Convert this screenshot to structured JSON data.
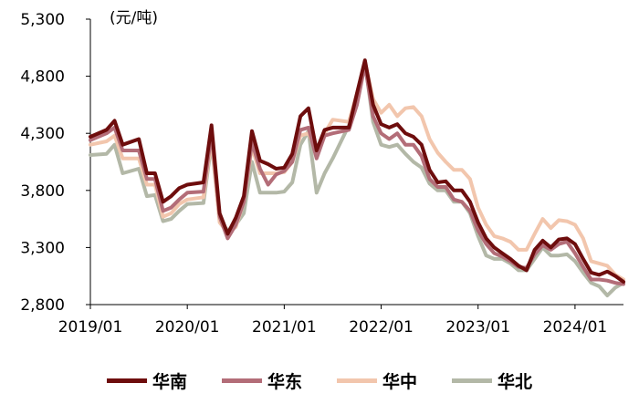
{
  "chart_data": {
    "type": "line",
    "unit_label": "(元/吨)",
    "ylim": [
      2800,
      5300
    ],
    "yticks": [
      2800,
      3300,
      3800,
      4300,
      4800,
      5300
    ],
    "ytick_labels": [
      "2,800",
      "3,300",
      "3,800",
      "4,300",
      "4,800",
      "5,300"
    ],
    "xticks": [
      "2019-01",
      "2020-01",
      "2021-01",
      "2022-01",
      "2023-01",
      "2024-01"
    ],
    "xtick_labels": [
      "2019/01",
      "2020/01",
      "2021/01",
      "2022/01",
      "2023/01",
      "2024/01"
    ],
    "xlim": [
      "2019-01",
      "2024-07"
    ],
    "grid": false,
    "legend_position": "bottom",
    "series": [
      {
        "name": "华南",
        "color": "#6e0d0d",
        "points": [
          [
            "2019-01",
            4270
          ],
          [
            "2019-03",
            4330
          ],
          [
            "2019-04",
            4410
          ],
          [
            "2019-05",
            4200
          ],
          [
            "2019-07",
            4250
          ],
          [
            "2019-08",
            3950
          ],
          [
            "2019-09",
            3950
          ],
          [
            "2019-10",
            3700
          ],
          [
            "2019-11",
            3750
          ],
          [
            "2019-12",
            3820
          ],
          [
            "2020-01",
            3850
          ],
          [
            "2020-03",
            3870
          ],
          [
            "2020-04",
            4370
          ],
          [
            "2020-05",
            3600
          ],
          [
            "2020-06",
            3420
          ],
          [
            "2020-07",
            3560
          ],
          [
            "2020-08",
            3750
          ],
          [
            "2020-09",
            4320
          ],
          [
            "2020-10",
            4060
          ],
          [
            "2020-11",
            4030
          ],
          [
            "2020-12",
            3990
          ],
          [
            "2021-01",
            4000
          ],
          [
            "2021-02",
            4120
          ],
          [
            "2021-03",
            4450
          ],
          [
            "2021-04",
            4520
          ],
          [
            "2021-05",
            4150
          ],
          [
            "2021-06",
            4330
          ],
          [
            "2021-07",
            4350
          ],
          [
            "2021-09",
            4350
          ],
          [
            "2021-10",
            4650
          ],
          [
            "2021-11",
            4940
          ],
          [
            "2021-12",
            4550
          ],
          [
            "2022-01",
            4380
          ],
          [
            "2022-02",
            4350
          ],
          [
            "2022-03",
            4380
          ],
          [
            "2022-04",
            4300
          ],
          [
            "2022-05",
            4270
          ],
          [
            "2022-06",
            4200
          ],
          [
            "2022-07",
            3980
          ],
          [
            "2022-08",
            3870
          ],
          [
            "2022-09",
            3880
          ],
          [
            "2022-10",
            3800
          ],
          [
            "2022-11",
            3800
          ],
          [
            "2022-12",
            3700
          ],
          [
            "2023-01",
            3520
          ],
          [
            "2023-02",
            3380
          ],
          [
            "2023-03",
            3300
          ],
          [
            "2023-04",
            3250
          ],
          [
            "2023-05",
            3200
          ],
          [
            "2023-06",
            3140
          ],
          [
            "2023-07",
            3100
          ],
          [
            "2023-08",
            3280
          ],
          [
            "2023-09",
            3360
          ],
          [
            "2023-10",
            3300
          ],
          [
            "2023-11",
            3370
          ],
          [
            "2023-12",
            3380
          ],
          [
            "2024-01",
            3330
          ],
          [
            "2024-02",
            3200
          ],
          [
            "2024-03",
            3080
          ],
          [
            "2024-04",
            3060
          ],
          [
            "2024-05",
            3090
          ],
          [
            "2024-06",
            3050
          ],
          [
            "2024-07",
            3000
          ]
        ]
      },
      {
        "name": "华东",
        "color": "#b36d78",
        "points": [
          [
            "2019-01",
            4240
          ],
          [
            "2019-03",
            4300
          ],
          [
            "2019-04",
            4350
          ],
          [
            "2019-05",
            4150
          ],
          [
            "2019-07",
            4150
          ],
          [
            "2019-08",
            3900
          ],
          [
            "2019-09",
            3900
          ],
          [
            "2019-10",
            3620
          ],
          [
            "2019-11",
            3650
          ],
          [
            "2019-12",
            3720
          ],
          [
            "2020-01",
            3780
          ],
          [
            "2020-03",
            3790
          ],
          [
            "2020-04",
            4300
          ],
          [
            "2020-05",
            3570
          ],
          [
            "2020-06",
            3380
          ],
          [
            "2020-07",
            3500
          ],
          [
            "2020-08",
            3700
          ],
          [
            "2020-09",
            4220
          ],
          [
            "2020-10",
            3990
          ],
          [
            "2020-11",
            3850
          ],
          [
            "2020-12",
            3940
          ],
          [
            "2021-01",
            3970
          ],
          [
            "2021-02",
            4050
          ],
          [
            "2021-03",
            4330
          ],
          [
            "2021-04",
            4350
          ],
          [
            "2021-05",
            4080
          ],
          [
            "2021-06",
            4280
          ],
          [
            "2021-07",
            4300
          ],
          [
            "2021-09",
            4330
          ],
          [
            "2021-10",
            4550
          ],
          [
            "2021-11",
            4900
          ],
          [
            "2021-12",
            4450
          ],
          [
            "2022-01",
            4300
          ],
          [
            "2022-02",
            4250
          ],
          [
            "2022-03",
            4300
          ],
          [
            "2022-04",
            4200
          ],
          [
            "2022-05",
            4200
          ],
          [
            "2022-06",
            4100
          ],
          [
            "2022-07",
            3900
          ],
          [
            "2022-08",
            3830
          ],
          [
            "2022-09",
            3830
          ],
          [
            "2022-10",
            3720
          ],
          [
            "2022-11",
            3700
          ],
          [
            "2022-12",
            3620
          ],
          [
            "2023-01",
            3450
          ],
          [
            "2023-02",
            3330
          ],
          [
            "2023-03",
            3250
          ],
          [
            "2023-04",
            3220
          ],
          [
            "2023-05",
            3180
          ],
          [
            "2023-06",
            3130
          ],
          [
            "2023-07",
            3120
          ],
          [
            "2023-08",
            3240
          ],
          [
            "2023-09",
            3320
          ],
          [
            "2023-10",
            3280
          ],
          [
            "2023-11",
            3330
          ],
          [
            "2023-12",
            3350
          ],
          [
            "2024-01",
            3250
          ],
          [
            "2024-02",
            3130
          ],
          [
            "2024-03",
            3020
          ],
          [
            "2024-04",
            3020
          ],
          [
            "2024-05",
            3010
          ],
          [
            "2024-06",
            2990
          ],
          [
            "2024-07",
            2980
          ]
        ]
      },
      {
        "name": "华中",
        "color": "#f2c6ad",
        "points": [
          [
            "2019-01",
            4200
          ],
          [
            "2019-03",
            4230
          ],
          [
            "2019-04",
            4280
          ],
          [
            "2019-05",
            4080
          ],
          [
            "2019-07",
            4080
          ],
          [
            "2019-08",
            3850
          ],
          [
            "2019-09",
            3850
          ],
          [
            "2019-10",
            3570
          ],
          [
            "2019-11",
            3600
          ],
          [
            "2019-12",
            3680
          ],
          [
            "2020-01",
            3720
          ],
          [
            "2020-03",
            3740
          ],
          [
            "2020-04",
            4250
          ],
          [
            "2020-05",
            3520
          ],
          [
            "2020-06",
            3430
          ],
          [
            "2020-07",
            3480
          ],
          [
            "2020-08",
            3700
          ],
          [
            "2020-09",
            4180
          ],
          [
            "2020-10",
            3950
          ],
          [
            "2020-11",
            3950
          ],
          [
            "2020-12",
            3950
          ],
          [
            "2021-01",
            3960
          ],
          [
            "2021-02",
            4050
          ],
          [
            "2021-03",
            4280
          ],
          [
            "2021-04",
            4300
          ],
          [
            "2021-05",
            4150
          ],
          [
            "2021-06",
            4300
          ],
          [
            "2021-07",
            4420
          ],
          [
            "2021-09",
            4400
          ],
          [
            "2021-10",
            4650
          ],
          [
            "2021-11",
            4920
          ],
          [
            "2021-12",
            4600
          ],
          [
            "2022-01",
            4480
          ],
          [
            "2022-02",
            4550
          ],
          [
            "2022-03",
            4450
          ],
          [
            "2022-04",
            4520
          ],
          [
            "2022-05",
            4530
          ],
          [
            "2022-06",
            4450
          ],
          [
            "2022-07",
            4250
          ],
          [
            "2022-08",
            4130
          ],
          [
            "2022-09",
            4050
          ],
          [
            "2022-10",
            3980
          ],
          [
            "2022-11",
            3980
          ],
          [
            "2022-12",
            3900
          ],
          [
            "2023-01",
            3650
          ],
          [
            "2023-02",
            3500
          ],
          [
            "2023-03",
            3400
          ],
          [
            "2023-04",
            3380
          ],
          [
            "2023-05",
            3350
          ],
          [
            "2023-06",
            3280
          ],
          [
            "2023-07",
            3280
          ],
          [
            "2023-08",
            3420
          ],
          [
            "2023-09",
            3550
          ],
          [
            "2023-10",
            3470
          ],
          [
            "2023-11",
            3540
          ],
          [
            "2023-12",
            3530
          ],
          [
            "2024-01",
            3500
          ],
          [
            "2024-02",
            3380
          ],
          [
            "2024-03",
            3180
          ],
          [
            "2024-04",
            3160
          ],
          [
            "2024-05",
            3140
          ],
          [
            "2024-06",
            3060
          ],
          [
            "2024-07",
            3020
          ]
        ]
      },
      {
        "name": "华北",
        "color": "#b3b8a7",
        "points": [
          [
            "2019-01",
            4110
          ],
          [
            "2019-03",
            4120
          ],
          [
            "2019-04",
            4200
          ],
          [
            "2019-05",
            3950
          ],
          [
            "2019-07",
            3990
          ],
          [
            "2019-08",
            3750
          ],
          [
            "2019-09",
            3760
          ],
          [
            "2019-10",
            3530
          ],
          [
            "2019-11",
            3550
          ],
          [
            "2019-12",
            3620
          ],
          [
            "2020-01",
            3680
          ],
          [
            "2020-03",
            3690
          ],
          [
            "2020-04",
            4220
          ],
          [
            "2020-05",
            3530
          ],
          [
            "2020-06",
            3450
          ],
          [
            "2020-07",
            3500
          ],
          [
            "2020-08",
            3600
          ],
          [
            "2020-09",
            4050
          ],
          [
            "2020-10",
            3780
          ],
          [
            "2020-11",
            3780
          ],
          [
            "2020-12",
            3780
          ],
          [
            "2021-01",
            3790
          ],
          [
            "2021-02",
            3870
          ],
          [
            "2021-03",
            4200
          ],
          [
            "2021-04",
            4320
          ],
          [
            "2021-05",
            3780
          ],
          [
            "2021-06",
            3950
          ],
          [
            "2021-07",
            4080
          ],
          [
            "2021-09",
            4370
          ],
          [
            "2021-10",
            4580
          ],
          [
            "2021-11",
            4920
          ],
          [
            "2021-12",
            4400
          ],
          [
            "2022-01",
            4200
          ],
          [
            "2022-02",
            4180
          ],
          [
            "2022-03",
            4200
          ],
          [
            "2022-04",
            4120
          ],
          [
            "2022-05",
            4050
          ],
          [
            "2022-06",
            4000
          ],
          [
            "2022-07",
            3860
          ],
          [
            "2022-08",
            3800
          ],
          [
            "2022-09",
            3800
          ],
          [
            "2022-10",
            3700
          ],
          [
            "2022-11",
            3700
          ],
          [
            "2022-12",
            3600
          ],
          [
            "2023-01",
            3400
          ],
          [
            "2023-02",
            3230
          ],
          [
            "2023-03",
            3200
          ],
          [
            "2023-04",
            3200
          ],
          [
            "2023-05",
            3160
          ],
          [
            "2023-06",
            3100
          ],
          [
            "2023-07",
            3100
          ],
          [
            "2023-08",
            3200
          ],
          [
            "2023-09",
            3300
          ],
          [
            "2023-10",
            3230
          ],
          [
            "2023-11",
            3230
          ],
          [
            "2023-12",
            3240
          ],
          [
            "2024-01",
            3180
          ],
          [
            "2024-02",
            3080
          ],
          [
            "2024-03",
            2990
          ],
          [
            "2024-04",
            2960
          ],
          [
            "2024-05",
            2880
          ],
          [
            "2024-06",
            2950
          ],
          [
            "2024-07",
            2990
          ]
        ]
      }
    ]
  }
}
